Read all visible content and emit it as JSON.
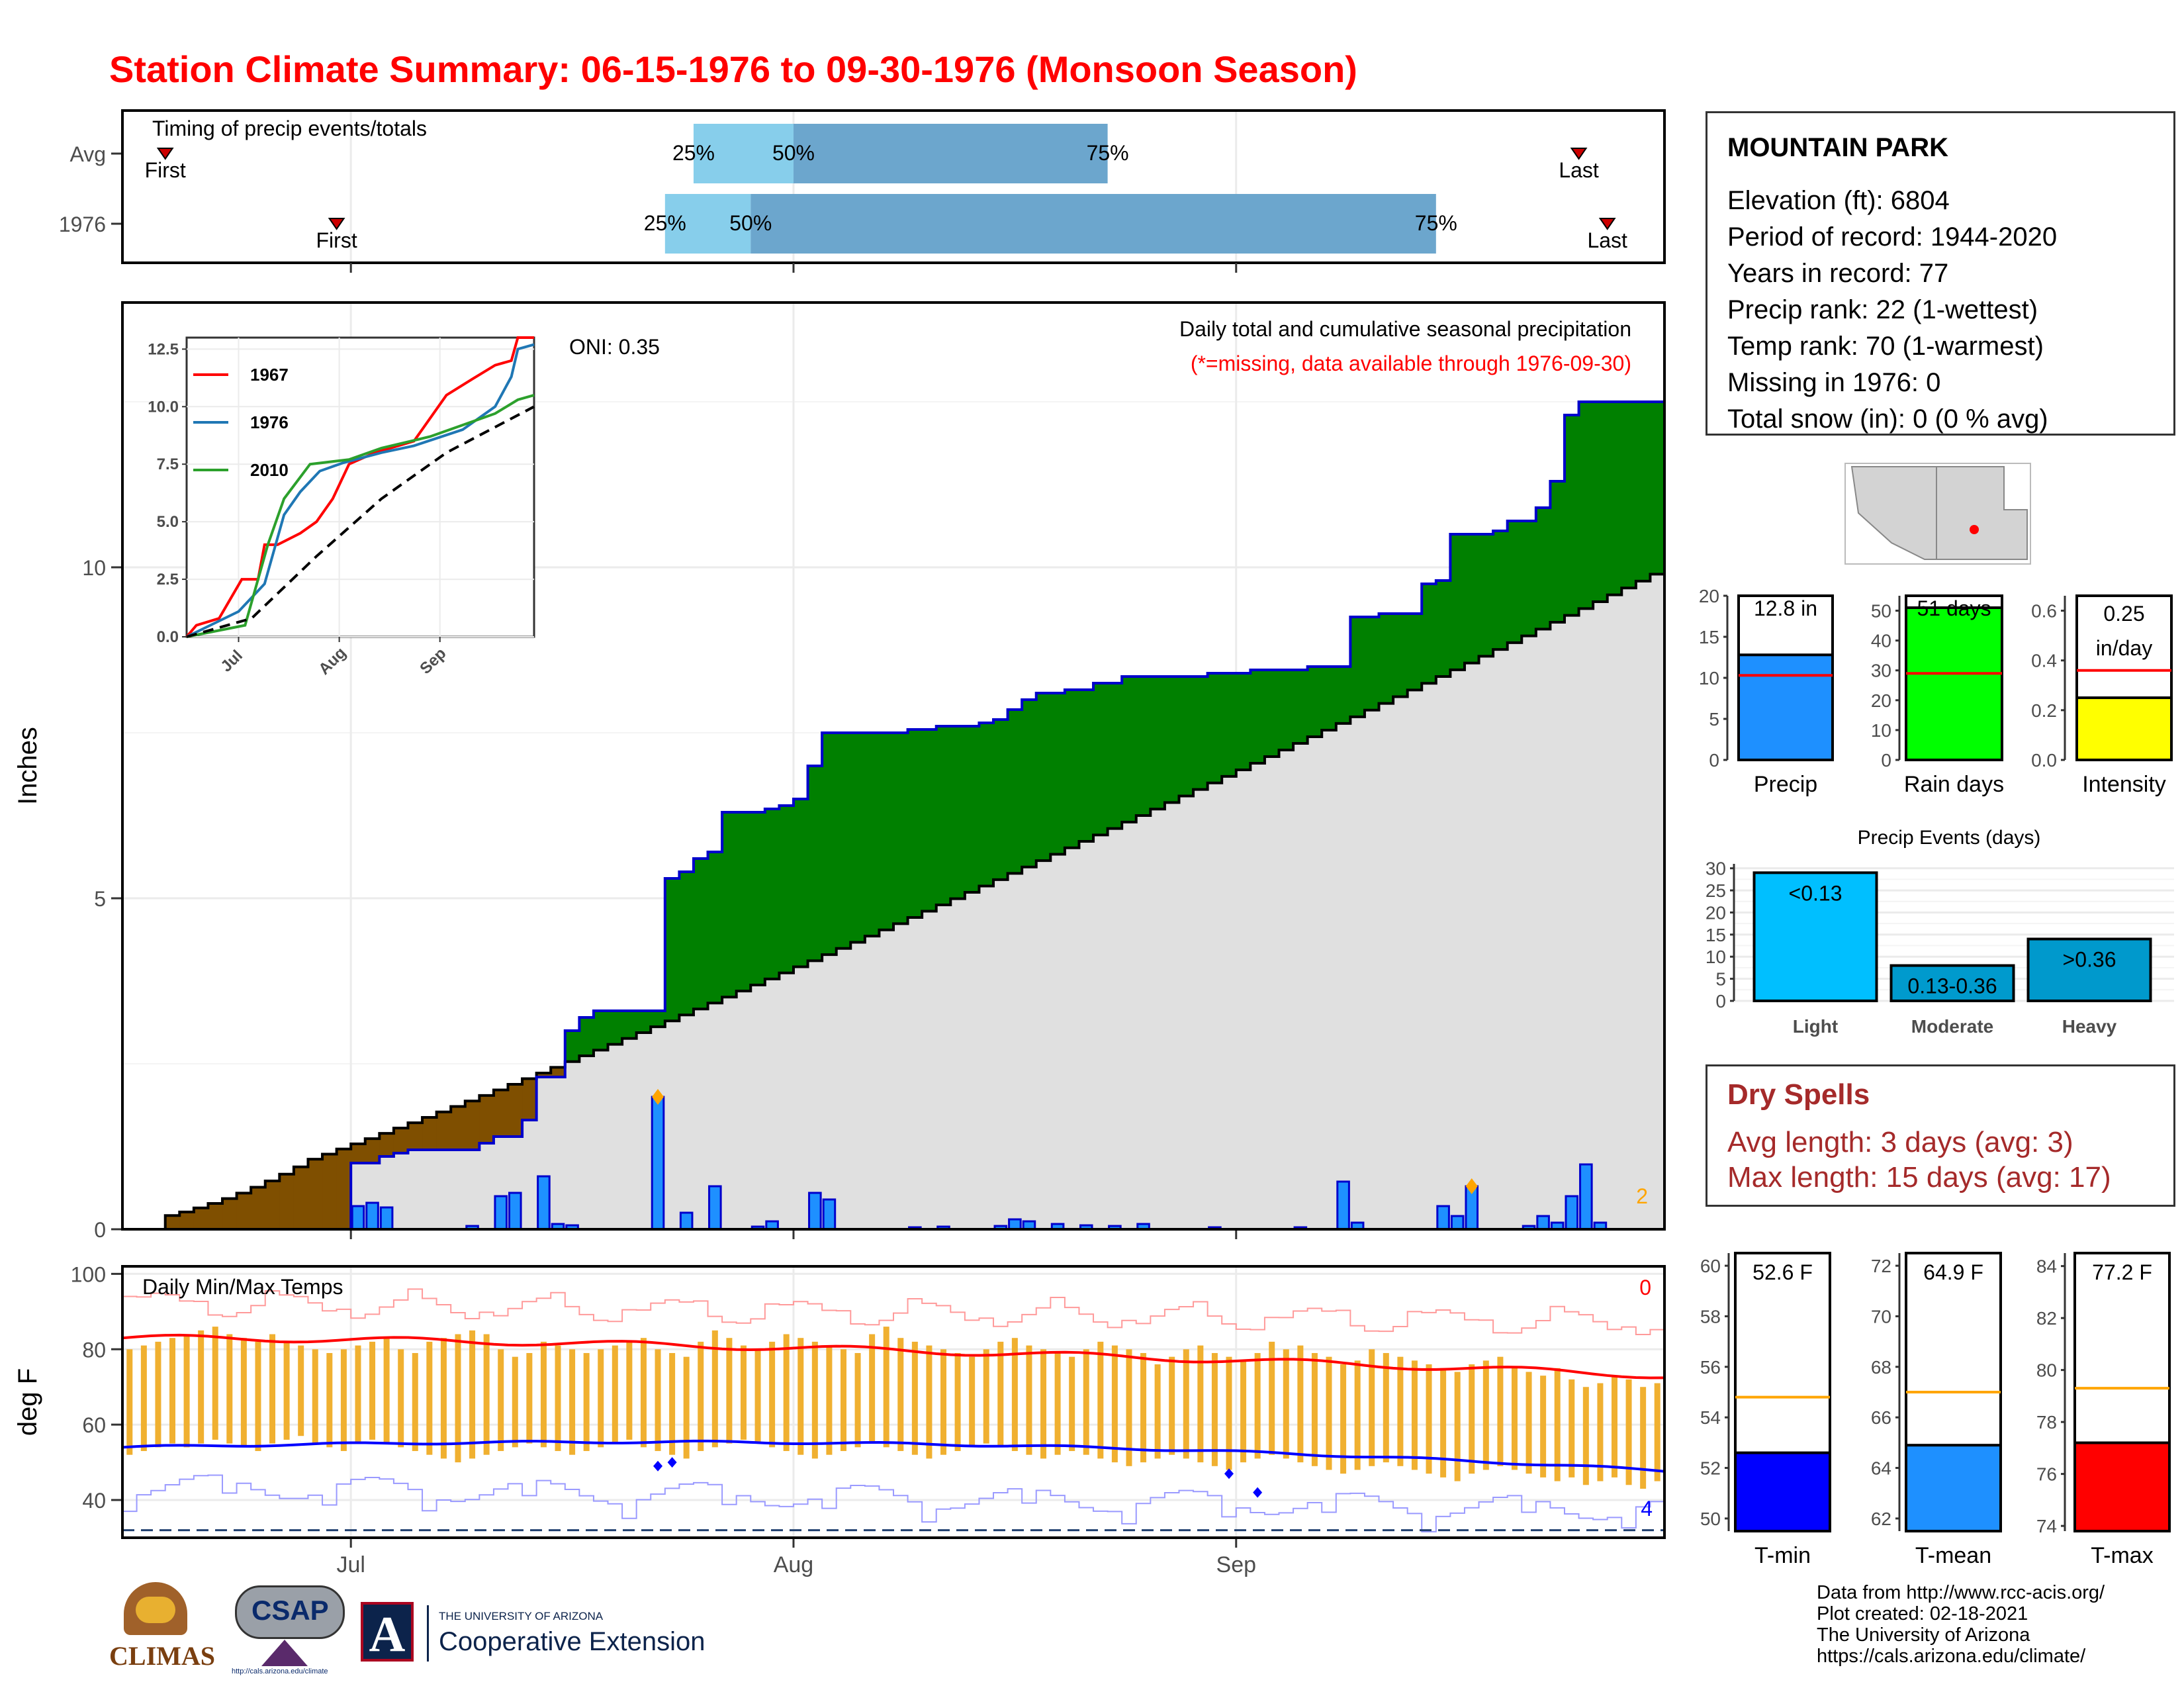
{
  "page": {
    "title": "Station Climate Summary: 06-15-1976 to 09-30-1976 (Monsoon Season)"
  },
  "station": {
    "name": "MOUNTAIN PARK",
    "lines": [
      "Elevation (ft): 6804",
      "Period of record: 1944-2020",
      "Years in record: 77",
      "Precip rank: 22 (1-wettest)",
      "Temp rank: 70 (1-warmest)",
      "Missing in 1976: 0",
      "Total snow (in): 0 (0 % avg)"
    ]
  },
  "dry_spells": {
    "title": "Dry Spells",
    "lines": [
      "Avg length: 3 days (avg: 3)",
      "Max length: 15 days (avg: 17)"
    ]
  },
  "footer": {
    "lines": [
      "Data from http://www.rcc-acis.org/",
      "Plot created: 02-18-2021",
      "The University of Arizona",
      "https://cals.arizona.edu/climate/"
    ]
  },
  "logos": {
    "climas": "CLIMAS",
    "csap": "CSAP",
    "csap_url": "http://cals.arizona.edu/climate",
    "ua_small": "THE UNIVERSITY OF ARIZONA",
    "ua_large": "Cooperative Extension",
    "ua_letter": "A"
  },
  "colors": {
    "title": "#ff0000",
    "cum_green": "#008000",
    "cum_brown": "#7f4f00",
    "avg_gray": "#e0e0e0",
    "daily_bar": "#1e90ff",
    "bar_outline": "#0000cc",
    "tmax": "#ff0000",
    "tmin": "#0000ff",
    "range_bar": "#f0b030",
    "light_blue": "#87ceeb",
    "mid_blue": "#6ca6cd"
  },
  "chart_data": [
    {
      "id": "timing",
      "type": "timeline",
      "title": "Timing of precip events/totals",
      "rows": [
        {
          "label": "Avg",
          "first": "06-18",
          "q25": "07-25",
          "q50": "08-01",
          "q75": "08-23",
          "last": "09-25",
          "first_label": "First",
          "last_label": "Last",
          "q25_label": "25%",
          "q50_label": "50%",
          "q75_label": "75%"
        },
        {
          "label": "1976",
          "first": "06-30",
          "q25": "07-23",
          "q50": "07-29",
          "q75": "09-15",
          "last": "09-27",
          "first_label": "First",
          "last_label": "Last",
          "q25_label": "25%",
          "q50_label": "50%",
          "q75_label": "75%"
        }
      ]
    },
    {
      "id": "precip_main",
      "type": "area",
      "title": "Daily total and cumulative seasonal precipitation",
      "subtitle": "(*=missing, data available through 1976-09-30)",
      "ylabel": "Inches",
      "ylim": [
        0,
        14
      ],
      "yticks": [
        0,
        5,
        10
      ],
      "xticks": [
        "Jul",
        "Aug",
        "Sep"
      ],
      "oni": "ONI: 0.35",
      "corner_count": "2",
      "x_start": "1976-06-15",
      "cumulative_1976": [
        [
          "06-15",
          0
        ],
        [
          "07-01",
          1.0
        ],
        [
          "07-03",
          1.1
        ],
        [
          "07-04",
          1.15
        ],
        [
          "07-05",
          1.2
        ],
        [
          "07-10",
          1.3
        ],
        [
          "07-11",
          1.4
        ],
        [
          "07-13",
          1.65
        ],
        [
          "07-14",
          2.3
        ],
        [
          "07-16",
          3.0
        ],
        [
          "07-17",
          3.2
        ],
        [
          "07-18",
          3.3
        ],
        [
          "07-23",
          5.3
        ],
        [
          "07-24",
          5.4
        ],
        [
          "07-25",
          5.6
        ],
        [
          "07-26",
          5.7
        ],
        [
          "07-27",
          6.3
        ],
        [
          "07-30",
          6.35
        ],
        [
          "07-31",
          6.4
        ],
        [
          "08-01",
          6.5
        ],
        [
          "08-02",
          7.0
        ],
        [
          "08-03",
          7.5
        ],
        [
          "08-09",
          7.55
        ],
        [
          "08-11",
          7.6
        ],
        [
          "08-14",
          7.65
        ],
        [
          "08-15",
          7.7
        ],
        [
          "08-16",
          7.85
        ],
        [
          "08-17",
          8.0
        ],
        [
          "08-18",
          8.1
        ],
        [
          "08-20",
          8.15
        ],
        [
          "08-22",
          8.25
        ],
        [
          "08-24",
          8.35
        ],
        [
          "08-30",
          8.4
        ],
        [
          "09-02",
          8.45
        ],
        [
          "09-06",
          8.5
        ],
        [
          "09-09",
          9.25
        ],
        [
          "09-11",
          9.3
        ],
        [
          "09-14",
          9.75
        ],
        [
          "09-15",
          9.8
        ],
        [
          "09-16",
          10.5
        ],
        [
          "09-19",
          10.55
        ],
        [
          "09-20",
          10.7
        ],
        [
          "09-22",
          10.9
        ],
        [
          "09-23",
          11.3
        ],
        [
          "09-24",
          12.3
        ],
        [
          "09-25",
          12.5
        ],
        [
          "09-30",
          12.5
        ]
      ],
      "cumulative_avg_end": 10.0,
      "daily_1976": [
        [
          "07-01",
          0.35
        ],
        [
          "07-02",
          0.4
        ],
        [
          "07-03",
          0.33
        ],
        [
          "07-09",
          0.05
        ],
        [
          "07-11",
          0.5
        ],
        [
          "07-12",
          0.55
        ],
        [
          "07-14",
          0.8
        ],
        [
          "07-15",
          0.08
        ],
        [
          "07-16",
          0.06
        ],
        [
          "07-22",
          2.0
        ],
        [
          "07-24",
          0.25
        ],
        [
          "07-26",
          0.65
        ],
        [
          "07-29",
          0.04
        ],
        [
          "07-30",
          0.12
        ],
        [
          "08-02",
          0.55
        ],
        [
          "08-03",
          0.45
        ],
        [
          "08-09",
          0.03
        ],
        [
          "08-11",
          0.04
        ],
        [
          "08-15",
          0.05
        ],
        [
          "08-16",
          0.15
        ],
        [
          "08-17",
          0.12
        ],
        [
          "08-19",
          0.08
        ],
        [
          "08-21",
          0.06
        ],
        [
          "08-23",
          0.05
        ],
        [
          "08-25",
          0.08
        ],
        [
          "08-30",
          0.03
        ],
        [
          "09-05",
          0.03
        ],
        [
          "09-08",
          0.72
        ],
        [
          "09-09",
          0.1
        ],
        [
          "09-15",
          0.35
        ],
        [
          "09-16",
          0.2
        ],
        [
          "09-17",
          0.65
        ],
        [
          "09-21",
          0.05
        ],
        [
          "09-22",
          0.2
        ],
        [
          "09-23",
          0.1
        ],
        [
          "09-24",
          0.5
        ],
        [
          "09-25",
          0.98
        ],
        [
          "09-26",
          0.1
        ]
      ],
      "marked_days": [
        "07-22",
        "09-17"
      ]
    },
    {
      "id": "precip_inset",
      "type": "line",
      "yticks": [
        0.0,
        2.5,
        5.0,
        7.5,
        10.0,
        12.5
      ],
      "ylim": [
        0,
        13
      ],
      "xticks": [
        "Jul",
        "Aug",
        "Sep"
      ],
      "series": [
        {
          "name": "1967",
          "color": "#ff0000",
          "values": [
            [
              0,
              0
            ],
            [
              3,
              0.5
            ],
            [
              10,
              0.8
            ],
            [
              17,
              2.5
            ],
            [
              22,
              2.5
            ],
            [
              24,
              4.0
            ],
            [
              28,
              4.0
            ],
            [
              35,
              4.5
            ],
            [
              40,
              5.0
            ],
            [
              45,
              6.0
            ],
            [
              50,
              7.5
            ],
            [
              58,
              8.0
            ],
            [
              70,
              8.5
            ],
            [
              80,
              10.5
            ],
            [
              88,
              11.2
            ],
            [
              95,
              11.8
            ],
            [
              100,
              12.0
            ],
            [
              102,
              13.0
            ],
            [
              107,
              13.0
            ]
          ]
        },
        {
          "name": "1976",
          "color": "#1f77b4",
          "values": [
            [
              0,
              0
            ],
            [
              16,
              1.1
            ],
            [
              24,
              2.3
            ],
            [
              30,
              5.3
            ],
            [
              35,
              6.3
            ],
            [
              41,
              7.2
            ],
            [
              48,
              7.55
            ],
            [
              60,
              8.0
            ],
            [
              70,
              8.3
            ],
            [
              85,
              9.0
            ],
            [
              95,
              10.0
            ],
            [
              100,
              11.3
            ],
            [
              102,
              12.5
            ],
            [
              107,
              12.7
            ]
          ]
        },
        {
          "name": "2010",
          "color": "#2ca02c",
          "values": [
            [
              0,
              0
            ],
            [
              18,
              0.5
            ],
            [
              25,
              4.0
            ],
            [
              30,
              6.0
            ],
            [
              38,
              7.5
            ],
            [
              50,
              7.7
            ],
            [
              60,
              8.2
            ],
            [
              75,
              8.7
            ],
            [
              85,
              9.2
            ],
            [
              95,
              9.7
            ],
            [
              102,
              10.3
            ],
            [
              107,
              10.5
            ]
          ]
        },
        {
          "name": "",
          "color": "#000000",
          "dashed": true,
          "values": [
            [
              0,
              0
            ],
            [
              20,
              0.8
            ],
            [
              40,
              3.5
            ],
            [
              60,
              6.0
            ],
            [
              80,
              8.0
            ],
            [
              107,
              10.0
            ]
          ]
        }
      ]
    },
    {
      "id": "summary_precip",
      "type": "bar",
      "categories": [
        "Precip"
      ],
      "values": [
        12.8
      ],
      "label": "12.8 in",
      "avg": 10.3,
      "ylim": [
        0,
        20
      ],
      "yticks": [
        0,
        5,
        10,
        15,
        20
      ],
      "color": "#1e90ff"
    },
    {
      "id": "summary_raindays",
      "type": "bar",
      "categories": [
        "Rain days"
      ],
      "values": [
        51
      ],
      "label": "51 days",
      "avg": 29,
      "ylim": [
        0,
        55
      ],
      "yticks": [
        0,
        10,
        20,
        30,
        40,
        50
      ],
      "color": "#00ff00"
    },
    {
      "id": "summary_intensity",
      "type": "bar",
      "categories": [
        "Intensity"
      ],
      "values": [
        0.25
      ],
      "label_lines": [
        "0.25",
        "in/day"
      ],
      "avg": 0.36,
      "ylim": [
        0,
        0.66
      ],
      "yticks": [
        "0.0",
        "0.2",
        "0.4",
        "0.6"
      ],
      "color": "#ffff00"
    },
    {
      "id": "precip_events",
      "type": "bar",
      "title": "Precip Events (days)",
      "categories": [
        "Light",
        "Moderate",
        "Heavy"
      ],
      "bar_labels": [
        "<0.13",
        "0.13-0.36",
        ">0.36"
      ],
      "values": [
        29,
        8,
        14
      ],
      "colors": [
        "#00bfff",
        "#009acd",
        "#0099cc"
      ],
      "ylim": [
        0,
        31
      ],
      "yticks": [
        0,
        5,
        10,
        15,
        20,
        25,
        30
      ]
    },
    {
      "id": "temps_main",
      "type": "line",
      "title": "Daily Min/Max Temps",
      "ylabel": "deg F",
      "ylim": [
        30,
        102
      ],
      "yticks": [
        40,
        60,
        80,
        100
      ],
      "xticks": [
        "Jul",
        "Aug",
        "Sep"
      ],
      "corner_top": "0",
      "corner_bottom": "4",
      "freeze_line": 32,
      "avg_tmax_start": 83,
      "avg_tmax_end": 73,
      "avg_tmin_start": 54,
      "avg_tmin_end": 47,
      "tmax_daily": [
        80,
        81,
        82,
        83,
        84,
        85,
        86,
        84,
        83,
        82,
        84,
        82,
        81,
        80,
        79,
        80,
        81,
        82,
        83,
        80,
        79,
        82,
        83,
        84,
        85,
        84,
        80,
        78,
        79,
        82,
        81,
        80,
        79,
        80,
        81,
        82,
        83,
        80,
        79,
        78,
        82,
        85,
        83,
        81,
        80,
        82,
        84,
        83,
        82,
        81,
        80,
        79,
        84,
        86,
        83,
        82,
        81,
        80,
        79,
        78,
        80,
        82,
        83,
        81,
        80,
        79,
        78,
        80,
        82,
        81,
        80,
        79,
        76,
        78,
        80,
        81,
        79,
        78,
        77,
        79,
        82,
        80,
        81,
        79,
        78,
        76,
        77,
        80,
        79,
        78,
        77,
        76,
        75,
        74,
        76,
        77,
        78,
        75,
        74,
        73,
        75,
        72,
        70,
        71,
        73,
        72,
        70,
        71
      ],
      "tmin_daily": [
        52,
        53,
        54,
        55,
        54,
        55,
        56,
        55,
        54,
        53,
        55,
        56,
        57,
        55,
        54,
        53,
        55,
        56,
        55,
        54,
        53,
        52,
        51,
        50,
        51,
        52,
        53,
        54,
        55,
        54,
        53,
        52,
        53,
        54,
        55,
        56,
        54,
        53,
        52,
        51,
        53,
        54,
        55,
        56,
        55,
        54,
        53,
        52,
        51,
        52,
        53,
        54,
        55,
        54,
        53,
        52,
        51,
        52,
        53,
        54,
        55,
        54,
        53,
        52,
        51,
        52,
        53,
        52,
        51,
        50,
        49,
        50,
        51,
        52,
        51,
        50,
        49,
        48,
        50,
        51,
        52,
        51,
        50,
        49,
        48,
        47,
        48,
        49,
        50,
        49,
        48,
        47,
        46,
        45,
        47,
        48,
        49,
        48,
        47,
        46,
        45,
        46,
        44,
        45,
        46,
        44,
        43,
        45
      ]
    },
    {
      "id": "summary_tmin",
      "type": "bar",
      "categories": [
        "T-min"
      ],
      "values": [
        52.6
      ],
      "label": "52.6 F",
      "avg": 54.8,
      "ylim": [
        49.5,
        60.5
      ],
      "yticks": [
        50,
        52,
        54,
        56,
        58,
        60
      ],
      "color": "#0000ff"
    },
    {
      "id": "summary_tmean",
      "type": "bar",
      "categories": [
        "T-mean"
      ],
      "values": [
        64.9
      ],
      "label": "64.9 F",
      "avg": 67.0,
      "ylim": [
        61.5,
        72.5
      ],
      "yticks": [
        62,
        64,
        66,
        68,
        70,
        72
      ],
      "color": "#1e90ff"
    },
    {
      "id": "summary_tmax",
      "type": "bar",
      "categories": [
        "T-max"
      ],
      "values": [
        77.2
      ],
      "label": "77.2 F",
      "avg": 79.3,
      "ylim": [
        73.8,
        84.5
      ],
      "yticks": [
        74,
        76,
        78,
        80,
        82,
        84
      ],
      "color": "#ff0000"
    }
  ]
}
